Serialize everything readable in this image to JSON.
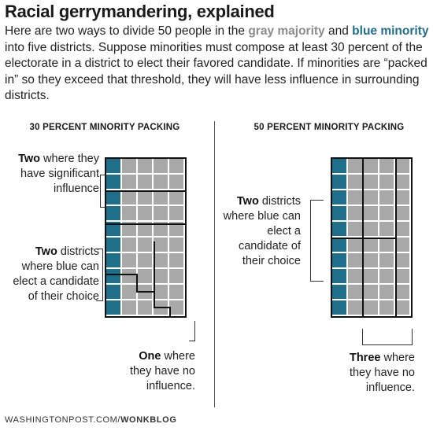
{
  "title": "Racial gerrymandering, explained",
  "intro": {
    "part1": "Here are two ways to divide 50 people in the ",
    "gray_term": "gray majority",
    "part2": " and ",
    "blue_term": "blue minority",
    "part3": " into five districts. Suppose minorities must compose at least 30 percent of the electorate in a district to elect their favored candidate. If minorities are “packed in” so they exceed that threshold, they will have less influence in surrounding districts."
  },
  "colors": {
    "blue": "#1f6f8b",
    "gray": "#a8a8a8",
    "text": "#1a1a1a"
  },
  "left_panel": {
    "heading": "30 PERCENT MINORITY PACKING",
    "label_top": {
      "bold": "Two",
      "rest": " where they have significant influence"
    },
    "label_mid": {
      "bold": "Two",
      "rest": " districts where blue can elect a candidate of their choice"
    },
    "label_bottom": {
      "bold": "One",
      "rest": " where they have no influence."
    }
  },
  "right_panel": {
    "heading": "50 PERCENT MINORITY PACKING",
    "label_left": {
      "bold": "Two",
      "rest": " districts where blue can elect a candidate of their choice"
    },
    "label_bottom": {
      "bold": "Three",
      "rest": " where they have no influence."
    }
  },
  "footer": {
    "site": "WASHINGTONPOST.COM/",
    "section": "WONKBLOG"
  }
}
